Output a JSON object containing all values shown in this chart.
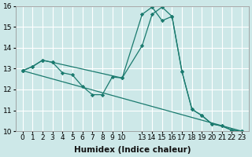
{
  "xlabel": "Humidex (Indice chaleur)",
  "bg_color": "#cde8e8",
  "grid_color": "#ffffff",
  "line_color": "#1a7a6e",
  "ylim": [
    10,
    16
  ],
  "yticks": [
    10,
    11,
    12,
    13,
    14,
    15,
    16
  ],
  "xtick_positions": [
    0,
    1,
    2,
    3,
    4,
    5,
    6,
    7,
    8,
    9,
    10,
    12,
    13,
    14,
    15,
    16,
    17,
    18,
    19,
    20,
    21,
    22
  ],
  "xtick_labels": [
    "0",
    "1",
    "2",
    "3",
    "4",
    "5",
    "6",
    "7",
    "8",
    "9",
    "10",
    "13",
    "14",
    "15",
    "16",
    "17",
    "18",
    "19",
    "20",
    "21",
    "22",
    "23"
  ],
  "line1_x": [
    0,
    1,
    2,
    3,
    4,
    5,
    6,
    7,
    8,
    9,
    10,
    12,
    13,
    14,
    15,
    16,
    17,
    18,
    19,
    20,
    21,
    22
  ],
  "line1_y": [
    12.9,
    13.1,
    13.4,
    13.3,
    12.8,
    12.7,
    12.15,
    11.75,
    11.75,
    12.6,
    12.55,
    15.6,
    15.95,
    15.3,
    15.5,
    12.85,
    11.05,
    10.75,
    10.35,
    10.25,
    10.05,
    10.0
  ],
  "line2_x": [
    0,
    1,
    2,
    3,
    10,
    12,
    13,
    14,
    15,
    16,
    17,
    18,
    19,
    20,
    21,
    22
  ],
  "line2_y": [
    12.9,
    13.1,
    13.4,
    13.3,
    12.55,
    14.1,
    15.6,
    15.95,
    15.5,
    12.85,
    11.05,
    10.75,
    10.35,
    10.25,
    10.05,
    10.0
  ],
  "line3_x": [
    0,
    22
  ],
  "line3_y": [
    12.9,
    10.0
  ],
  "fontsize_tick": 6.5,
  "fontsize_label": 7.5
}
